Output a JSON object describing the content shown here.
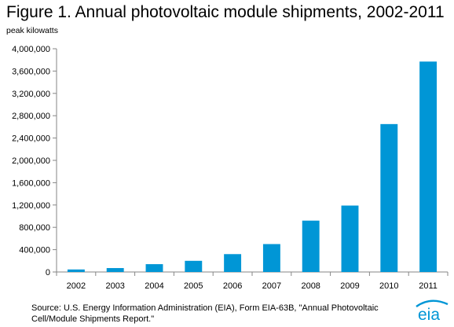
{
  "chart_data": {
    "type": "bar",
    "title": "Figure 1. Annual photovoltaic module shipments, 2002-2011",
    "ylabel": "peak kilowatts",
    "xlabel": "",
    "categories": [
      "2002",
      "2003",
      "2004",
      "2005",
      "2006",
      "2007",
      "2008",
      "2009",
      "2010",
      "2011"
    ],
    "values": [
      45000,
      70000,
      140000,
      200000,
      320000,
      500000,
      920000,
      1190000,
      2650000,
      3770000
    ],
    "ylim": [
      0,
      4000000
    ],
    "yticks": [
      0,
      400000,
      800000,
      1200000,
      1600000,
      2000000,
      2400000,
      2800000,
      3200000,
      3600000,
      4000000
    ],
    "ytick_labels": [
      "0",
      "400,000",
      "800,000",
      "1,200,000",
      "1,600,000",
      "2,000,000",
      "2,400,000",
      "2,800,000",
      "3,200,000",
      "3,600,000",
      "4,000,000"
    ],
    "bar_color": "#0096d6",
    "grid": false,
    "legend": "none"
  },
  "source_note": "Source: U.S. Energy Information Administration (EIA), Form EIA-63B, \"Annual Photovoltaic Cell/Module Shipments Report.\"",
  "logo": {
    "text": "eia",
    "color": "#0096d6"
  }
}
